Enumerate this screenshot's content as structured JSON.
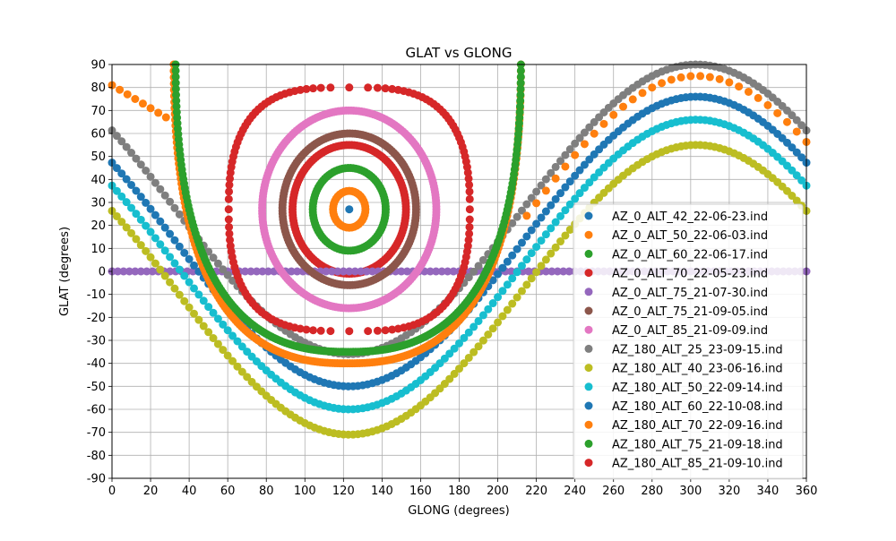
{
  "chart_data": {
    "type": "scatter",
    "title": "GLAT vs GLONG",
    "xlabel": "GLONG (degrees)",
    "ylabel": "GLAT (degrees)",
    "xlim": [
      0,
      360
    ],
    "ylim": [
      -90,
      90
    ],
    "xticks": [
      0,
      20,
      40,
      60,
      80,
      100,
      120,
      140,
      160,
      180,
      200,
      220,
      240,
      260,
      280,
      300,
      320,
      340,
      360
    ],
    "yticks": [
      -90,
      -80,
      -70,
      -60,
      -50,
      -40,
      -30,
      -20,
      -10,
      0,
      10,
      20,
      30,
      40,
      50,
      60,
      70,
      80,
      90
    ],
    "grid": true,
    "legend_position": "lower-right",
    "series": [
      {
        "name": "AZ_0_ALT_42_22-06-23.ind",
        "color": "#1f77b4",
        "kind": "ring",
        "center": [
          123,
          27
        ],
        "radius": 0
      },
      {
        "name": "AZ_0_ALT_50_22-06-03.ind",
        "color": "#ff7f0e",
        "kind": "ring",
        "center": [
          123,
          27
        ],
        "radius": 8
      },
      {
        "name": "AZ_0_ALT_60_22-06-17.ind",
        "color": "#2ca02c",
        "kind": "ring",
        "center": [
          123,
          27
        ],
        "radius": 18
      },
      {
        "name": "AZ_0_ALT_70_22-05-23.ind",
        "color": "#d62728",
        "kind": "ring",
        "center": [
          123,
          27
        ],
        "radius": 28
      },
      {
        "name": "AZ_0_ALT_75_21-07-30.ind",
        "color": "#9467bd",
        "kind": "flat",
        "y": 0
      },
      {
        "name": "AZ_0_ALT_75_21-09-05.ind",
        "color": "#8c564b",
        "kind": "ring",
        "center": [
          123,
          27
        ],
        "radius": 33
      },
      {
        "name": "AZ_0_ALT_85_21-09-09.ind",
        "color": "#e377c2",
        "kind": "ring",
        "center": [
          123,
          27
        ],
        "radius": 43
      },
      {
        "name": "AZ_180_ALT_25_23-09-15.ind",
        "color": "#7f7f7f",
        "kind": "wave",
        "amp": 63,
        "shift": 27,
        "peak": 303
      },
      {
        "name": "AZ_180_ALT_40_23-06-16.ind",
        "color": "#bcbd22",
        "kind": "wave",
        "amp": 63,
        "shift": -8,
        "peak": 303
      },
      {
        "name": "AZ_180_ALT_50_22-09-14.ind",
        "color": "#17becf",
        "kind": "wave",
        "amp": 63,
        "shift": 3,
        "peak": 303
      },
      {
        "name": "AZ_180_ALT_60_22-10-08.ind",
        "color": "#1f77b4",
        "kind": "wave",
        "amp": 63,
        "shift": 13,
        "peak": 303
      },
      {
        "name": "AZ_180_ALT_70_22-09-16.ind",
        "color": "#ff7f0e",
        "kind": "lobe",
        "ymin": -40,
        "xl": 32,
        "xr": 212
      },
      {
        "name": "AZ_180_ALT_75_21-09-18.ind",
        "color": "#2ca02c",
        "kind": "lobe",
        "ymin": -35,
        "xl": 33,
        "xr": 212
      },
      {
        "name": "AZ_180_ALT_85_21-09-10.ind",
        "color": "#d62728",
        "kind": "loop",
        "center": [
          123,
          27
        ],
        "ymin": -26,
        "ymax": 80,
        "xl": 58,
        "xr": 183
      }
    ]
  }
}
